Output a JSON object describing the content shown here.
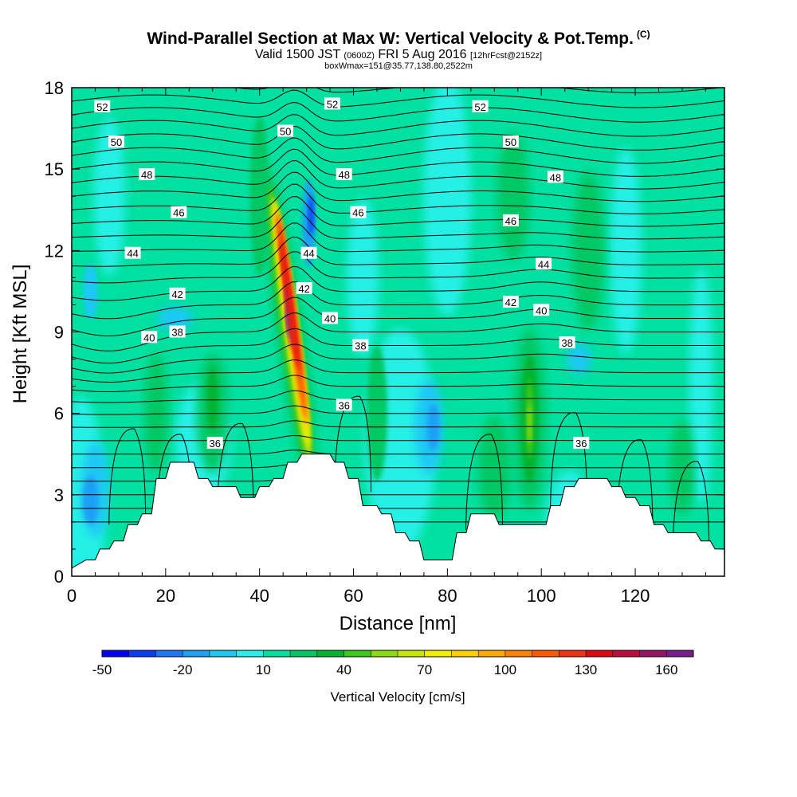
{
  "header": {
    "title": "Wind-Parallel Section at Max W: Vertical Velocity & Pot.Temp.",
    "copyright": "(C)",
    "valid_prefix": "Valid 1500 JST",
    "valid_utc": "(0600Z)",
    "valid_date": "FRI 5 Aug 2016",
    "forecast": "[12hrFcst@2152z]",
    "box_info": "boxWmax=151@35.77,138.80,2522m"
  },
  "chart_data": {
    "type": "contour-section",
    "xlabel": "Distance [nm]",
    "ylabel": "Height [Kft MSL]",
    "xlim": [
      0,
      139
    ],
    "ylim": [
      0,
      18
    ],
    "xticks": [
      "0",
      "20",
      "40",
      "60",
      "80",
      "100",
      "120"
    ],
    "yticks": [
      "0",
      "3",
      "6",
      "9",
      "12",
      "15",
      "18"
    ],
    "colorbar": {
      "label": "Vertical Velocity [cm/s]",
      "tick_labels": [
        "-50",
        "-20",
        "10",
        "40",
        "70",
        "100",
        "130",
        "160"
      ],
      "levels": [
        -50,
        -40,
        -30,
        -20,
        -10,
        0,
        10,
        20,
        30,
        40,
        50,
        60,
        70,
        80,
        90,
        100,
        110,
        120,
        130,
        140,
        150,
        160,
        170
      ],
      "colors": [
        "#0000f0",
        "#0a3cf5",
        "#1e78f5",
        "#1ea0f5",
        "#1ec8f5",
        "#28f0e6",
        "#00e0a0",
        "#00c864",
        "#00b432",
        "#3cc81e",
        "#8cdc14",
        "#c8e60a",
        "#f0f000",
        "#ffd200",
        "#ffaa00",
        "#ff8200",
        "#ff5a00",
        "#f03214",
        "#dc0a14",
        "#be0a3c",
        "#961464",
        "#781e8c"
      ]
    },
    "terrain": [
      [
        0,
        0.3
      ],
      [
        3,
        0.6
      ],
      [
        5,
        0.6
      ],
      [
        6,
        1
      ],
      [
        8,
        1
      ],
      [
        9,
        1.3
      ],
      [
        11,
        1.3
      ],
      [
        12,
        1.9
      ],
      [
        14,
        1.9
      ],
      [
        15,
        2.3
      ],
      [
        17,
        2.3
      ],
      [
        18,
        3.6
      ],
      [
        20,
        3.6
      ],
      [
        21,
        4.2
      ],
      [
        26,
        4.2
      ],
      [
        27,
        3.6
      ],
      [
        29,
        3.6
      ],
      [
        30,
        3.3
      ],
      [
        35,
        3.3
      ],
      [
        36,
        2.9
      ],
      [
        39,
        2.9
      ],
      [
        40,
        3.3
      ],
      [
        42,
        3.3
      ],
      [
        43,
        3.6
      ],
      [
        45,
        3.6
      ],
      [
        46,
        4.2
      ],
      [
        48,
        4.2
      ],
      [
        49,
        4.5
      ],
      [
        55,
        4.5
      ],
      [
        56,
        4.2
      ],
      [
        58,
        4.2
      ],
      [
        59,
        3.6
      ],
      [
        61,
        3.6
      ],
      [
        62,
        2.6
      ],
      [
        65,
        2.6
      ],
      [
        66,
        2.3
      ],
      [
        68,
        2.3
      ],
      [
        69,
        1.6
      ],
      [
        71,
        1.6
      ],
      [
        72,
        1.3
      ],
      [
        74,
        1.3
      ],
      [
        75,
        0.6
      ],
      [
        81,
        0.6
      ],
      [
        82,
        1.6
      ],
      [
        84,
        1.6
      ],
      [
        85,
        2.3
      ],
      [
        90,
        2.3
      ],
      [
        91,
        1.9
      ],
      [
        101,
        1.9
      ],
      [
        102,
        2.6
      ],
      [
        104,
        2.6
      ],
      [
        105,
        3.3
      ],
      [
        107,
        3.3
      ],
      [
        108,
        3.6
      ],
      [
        114,
        3.6
      ],
      [
        115,
        3.3
      ],
      [
        117,
        3.3
      ],
      [
        118,
        2.9
      ],
      [
        120,
        2.9
      ],
      [
        121,
        2.6
      ],
      [
        123,
        2.6
      ],
      [
        124,
        1.9
      ],
      [
        126,
        1.9
      ],
      [
        127,
        1.6
      ],
      [
        133,
        1.6
      ],
      [
        134,
        1.3
      ],
      [
        136,
        1.3
      ],
      [
        137,
        1
      ],
      [
        139,
        1
      ]
    ],
    "updraft_cores": [
      {
        "x": 46.5,
        "y": 9.5,
        "max_w": 151
      },
      {
        "x": 97.5,
        "y": 5.8,
        "max_w": 45
      }
    ],
    "theta_contour_labels": [
      {
        "text": "52",
        "x": 6.5,
        "y": 17.3
      },
      {
        "text": "52",
        "x": 55.5,
        "y": 17.4
      },
      {
        "text": "52",
        "x": 87,
        "y": 17.3
      },
      {
        "text": "50",
        "x": 9.5,
        "y": 16.0
      },
      {
        "text": "50",
        "x": 45.5,
        "y": 16.4
      },
      {
        "text": "50",
        "x": 93.5,
        "y": 16.0
      },
      {
        "text": "48",
        "x": 16,
        "y": 14.8
      },
      {
        "text": "48",
        "x": 58,
        "y": 14.8
      },
      {
        "text": "48",
        "x": 103,
        "y": 14.7
      },
      {
        "text": "46",
        "x": 22.8,
        "y": 13.4
      },
      {
        "text": "46",
        "x": 61,
        "y": 13.4
      },
      {
        "text": "46",
        "x": 93.5,
        "y": 13.1
      },
      {
        "text": "44",
        "x": 13,
        "y": 11.9
      },
      {
        "text": "44",
        "x": 50.5,
        "y": 11.9
      },
      {
        "text": "44",
        "x": 100.5,
        "y": 11.5
      },
      {
        "text": "42",
        "x": 22.5,
        "y": 10.4
      },
      {
        "text": "42",
        "x": 49.5,
        "y": 10.6
      },
      {
        "text": "42",
        "x": 93.5,
        "y": 10.1
      },
      {
        "text": "40",
        "x": 16.5,
        "y": 8.8
      },
      {
        "text": "40",
        "x": 55,
        "y": 9.5
      },
      {
        "text": "40",
        "x": 100,
        "y": 9.8
      },
      {
        "text": "38",
        "x": 22.5,
        "y": 9.0
      },
      {
        "text": "38",
        "x": 61.5,
        "y": 8.5
      },
      {
        "text": "38",
        "x": 105.5,
        "y": 8.6
      },
      {
        "text": "36",
        "x": 30.5,
        "y": 4.9
      },
      {
        "text": "36",
        "x": 58,
        "y": 6.3
      },
      {
        "text": "36",
        "x": 108.5,
        "y": 4.9
      }
    ]
  }
}
